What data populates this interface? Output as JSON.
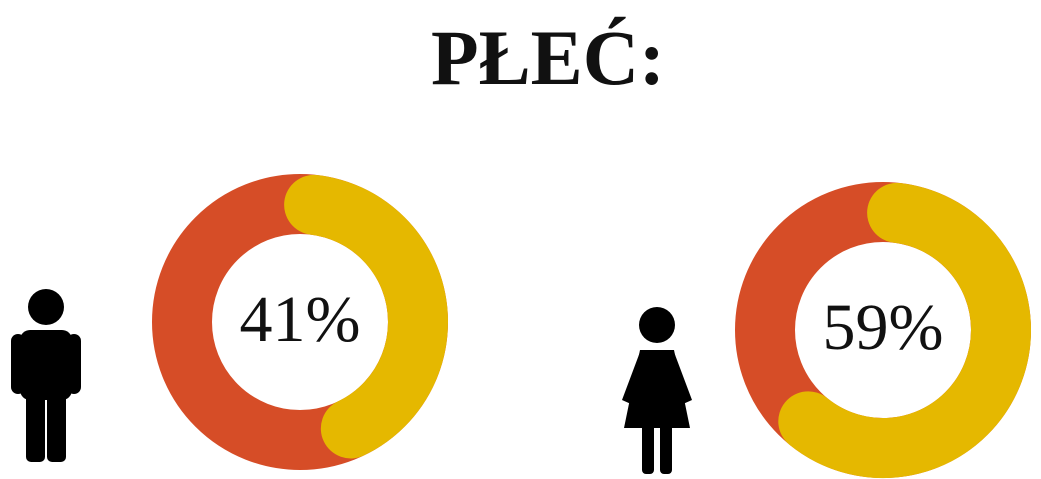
{
  "title": "PŁEĆ:",
  "chart_data": [
    {
      "type": "donut",
      "values": [
        41
      ],
      "value_labels": [
        "41%"
      ],
      "color": "#e5b800",
      "track_color": "#d64d27"
    },
    {
      "type": "donut",
      "values": [
        59
      ],
      "value_labels": [
        "59%"
      ],
      "color": "#e5b800",
      "track_color": "#d64d27"
    }
  ]
}
